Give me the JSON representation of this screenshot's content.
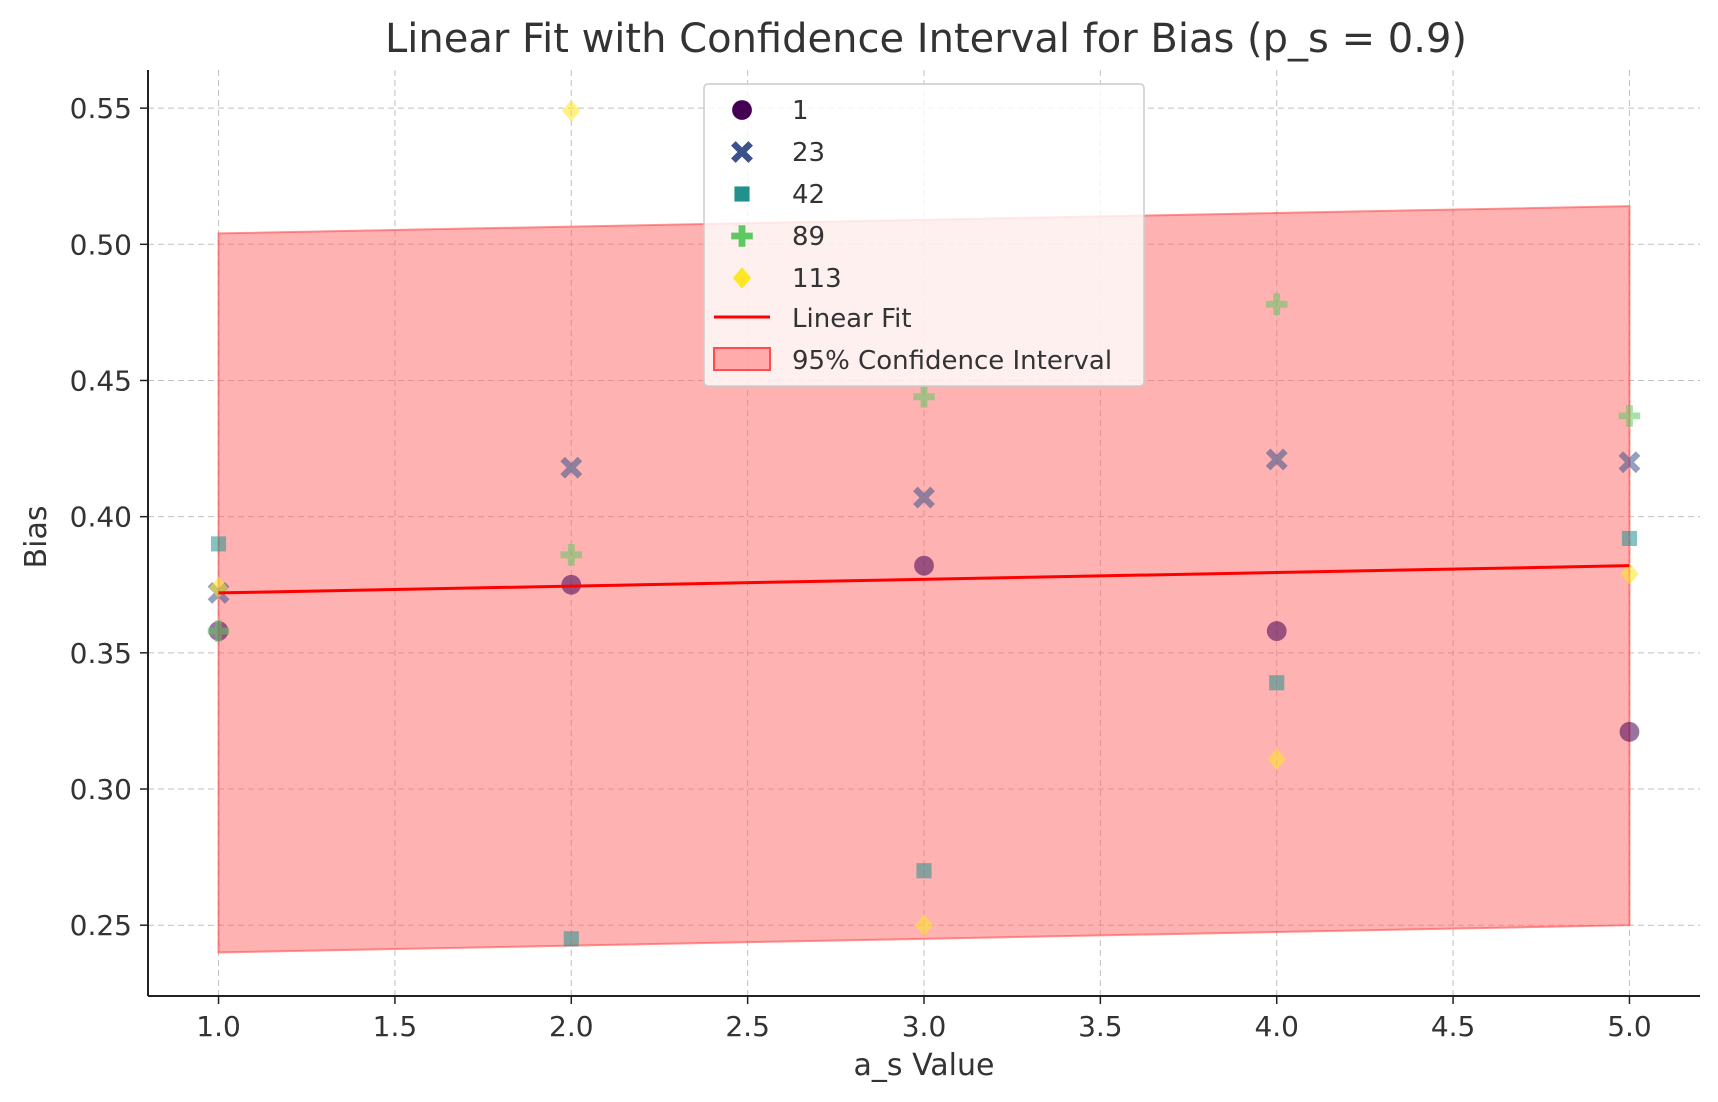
{
  "chart_data": {
    "type": "scatter",
    "title": "Linear Fit with Confidence Interval for Bias (p_s = 0.9)",
    "xlabel": "a_s Value",
    "ylabel": "Bias",
    "xlim": [
      0.8,
      5.2
    ],
    "ylim": [
      0.224,
      0.564
    ],
    "xticks": [
      1.0,
      1.5,
      2.0,
      2.5,
      3.0,
      3.5,
      4.0,
      4.5,
      5.0
    ],
    "xtick_labels": [
      "1.0",
      "1.5",
      "2.0",
      "2.5",
      "3.0",
      "3.5",
      "4.0",
      "4.5",
      "5.0"
    ],
    "yticks": [
      0.25,
      0.3,
      0.35,
      0.4,
      0.45,
      0.5,
      0.55
    ],
    "ytick_labels": [
      "0.25",
      "0.30",
      "0.35",
      "0.40",
      "0.45",
      "0.50",
      "0.55"
    ],
    "grid": true,
    "legend_position": "top-center",
    "series": [
      {
        "name": "1",
        "marker": "circle",
        "color": "#440154",
        "points": [
          [
            1,
            0.358
          ],
          [
            2,
            0.375
          ],
          [
            3,
            0.382
          ],
          [
            4,
            0.358
          ],
          [
            5,
            0.321
          ]
        ]
      },
      {
        "name": "23",
        "marker": "x",
        "color": "#3b528b",
        "points": [
          [
            1,
            0.372
          ],
          [
            2,
            0.418
          ],
          [
            3,
            0.407
          ],
          [
            4,
            0.421
          ],
          [
            5,
            0.42
          ]
        ]
      },
      {
        "name": "42",
        "marker": "square",
        "color": "#21918c",
        "points": [
          [
            1,
            0.39
          ],
          [
            2,
            0.245
          ],
          [
            3,
            0.27
          ],
          [
            4,
            0.339
          ],
          [
            5,
            0.392
          ]
        ]
      },
      {
        "name": "89",
        "marker": "plus",
        "color": "#5ec962",
        "points": [
          [
            1,
            0.358
          ],
          [
            2,
            0.386
          ],
          [
            3,
            0.444
          ],
          [
            4,
            0.478
          ],
          [
            5,
            0.437
          ]
        ]
      },
      {
        "name": "113",
        "marker": "diamond",
        "color": "#fde725",
        "points": [
          [
            1,
            0.374
          ],
          [
            2,
            0.549
          ],
          [
            3,
            0.25
          ],
          [
            4,
            0.311
          ],
          [
            5,
            0.379
          ]
        ]
      }
    ],
    "fit": {
      "name": "Linear Fit",
      "color": "#ff0000",
      "x": [
        1,
        5
      ],
      "y": [
        0.372,
        0.382
      ]
    },
    "confidence_interval": {
      "name": "95% Confidence Interval",
      "color": "#ff0000",
      "x": [
        1,
        5
      ],
      "upper": [
        0.504,
        0.514
      ],
      "lower": [
        0.24,
        0.25
      ]
    }
  }
}
